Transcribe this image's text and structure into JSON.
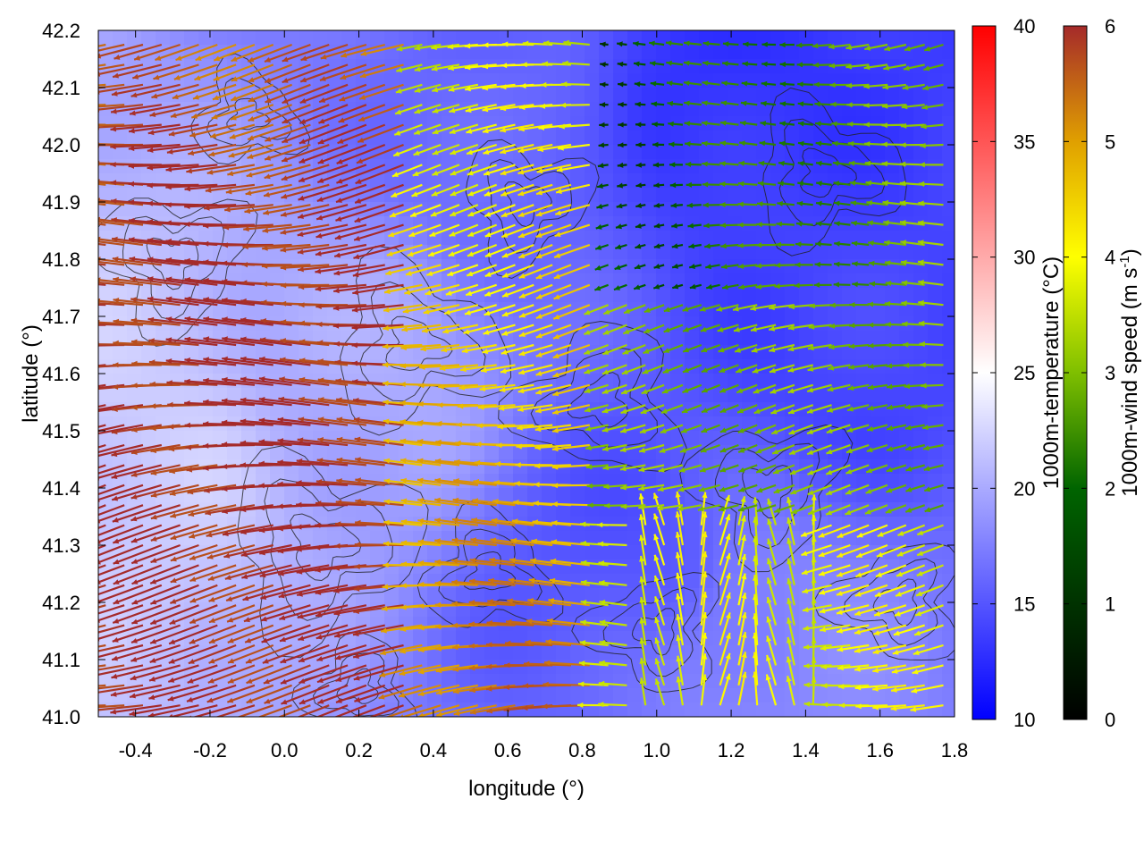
{
  "chart_data": {
    "type": "vector-field",
    "xlabel": "longitude (°)",
    "ylabel": "latitude (°)",
    "xlim": [
      -0.5,
      1.8
    ],
    "ylim": [
      41.0,
      42.2
    ],
    "x_ticks": [
      -0.4,
      -0.2,
      0.0,
      0.2,
      0.4,
      0.6,
      0.8,
      1.0,
      1.2,
      1.4,
      1.6,
      1.8
    ],
    "x_tick_labels": [
      "-0.4",
      "-0.2",
      "0.0",
      "0.2",
      "0.4",
      "0.6",
      "0.8",
      "1.0",
      "1.2",
      "1.4",
      "1.6",
      "1.8"
    ],
    "y_ticks": [
      41.0,
      41.1,
      41.2,
      41.3,
      41.4,
      41.5,
      41.6,
      41.7,
      41.8,
      41.9,
      42.0,
      42.1,
      42.2
    ],
    "y_tick_labels": [
      "41.0",
      "41.1",
      "41.2",
      "41.3",
      "41.4",
      "41.5",
      "41.6",
      "41.7",
      "41.8",
      "41.9",
      "42.0",
      "42.1",
      "42.2"
    ],
    "background_field": {
      "name": "1000m-temperature",
      "unit": "°C",
      "colorbar_label": "1000m-temperature (°C)",
      "range": [
        10,
        40
      ],
      "ticks": [
        10,
        15,
        20,
        25,
        30,
        35,
        40
      ],
      "tick_labels": [
        "10",
        "15",
        "20",
        "25",
        "30",
        "35",
        "40"
      ],
      "colors": [
        "#0000ff",
        "#ffffff",
        "#ff0000"
      ],
      "approx_values": [
        {
          "lon": -0.4,
          "lat": 41.5,
          "temp": 22
        },
        {
          "lon": 0.2,
          "lat": 41.6,
          "temp": 20
        },
        {
          "lon": 0.6,
          "lat": 42.0,
          "temp": 16
        },
        {
          "lon": 1.2,
          "lat": 42.1,
          "temp": 13
        },
        {
          "lon": 1.5,
          "lat": 41.7,
          "temp": 14
        },
        {
          "lon": 0.9,
          "lat": 41.3,
          "temp": 15
        },
        {
          "lon": 1.3,
          "lat": 41.1,
          "temp": 18
        }
      ]
    },
    "vectors": {
      "name": "1000m-wind speed",
      "unit": "m s-1",
      "colorbar_label": "1000m-wind speed (m s⁻¹)",
      "colorbar_label_main": "1000m-wind speed (m s",
      "colorbar_label_sup": "-1",
      "colorbar_label_end": ")",
      "range": [
        0,
        6
      ],
      "ticks": [
        0,
        1,
        2,
        3,
        4,
        5,
        6
      ],
      "tick_labels": [
        "0",
        "1",
        "2",
        "3",
        "4",
        "5",
        "6"
      ],
      "colors": [
        "#000000",
        "#006400",
        "#7fbf00",
        "#ffff00",
        "#e0a000",
        "#a52a2a"
      ],
      "dominant_direction": "from east (westward flow)",
      "regions": [
        {
          "area": "west (lon -0.5 to 0.4)",
          "speed": 6
        },
        {
          "area": "central band (lon 0.2 to 0.8)",
          "speed": 4.5
        },
        {
          "area": "northeast (lon 1.0 to 1.6, lat 41.8 to 42.2)",
          "speed": 1
        },
        {
          "area": "southeast (lon 1.0 to 1.4, lat 41.0 to 41.3)",
          "speed": 3.5
        }
      ]
    },
    "contours": {
      "name": "topography",
      "color": "#000000"
    }
  }
}
